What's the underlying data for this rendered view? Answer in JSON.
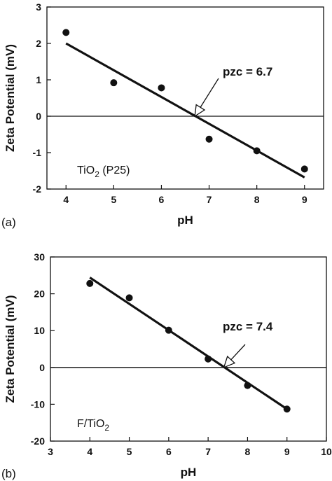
{
  "chart_data": [
    {
      "type": "scatter",
      "panel_label": "(a)",
      "xlabel": "pH",
      "ylabel": "Zeta Potential (mV)",
      "xlim": [
        3.6,
        9.4
      ],
      "ylim": [
        -2,
        3
      ],
      "xticks": [
        "4",
        "5",
        "6",
        "7",
        "8",
        "9"
      ],
      "yticks": [
        "3",
        "2",
        "1",
        "0",
        "-1",
        "-2"
      ],
      "x": [
        4,
        5,
        6,
        7,
        8,
        9
      ],
      "y": [
        2.3,
        0.92,
        0.78,
        -0.63,
        -0.95,
        -1.45
      ],
      "fit_line": {
        "x": [
          4,
          9
        ],
        "y": [
          2.0,
          -1.68
        ]
      },
      "zero_line": true,
      "annotation": {
        "text": "pzc = 6.7",
        "x": 6.7
      },
      "sample_label": {
        "prefix": "TiO",
        "sub": "2",
        "suffix": " (P25)"
      }
    },
    {
      "type": "scatter",
      "panel_label": "(b)",
      "xlabel": "pH",
      "ylabel": "Zeta Potential (mV)",
      "xlim": [
        3,
        10
      ],
      "ylim": [
        -20,
        30
      ],
      "xticks": [
        "3",
        "4",
        "5",
        "6",
        "7",
        "8",
        "9",
        "10"
      ],
      "yticks": [
        "30",
        "20",
        "10",
        "0",
        "-10",
        "-20"
      ],
      "x": [
        4,
        5,
        6,
        7,
        8,
        9
      ],
      "y": [
        22.8,
        18.9,
        10.1,
        2.3,
        -4.9,
        -11.3
      ],
      "fit_line": {
        "x": [
          4,
          9
        ],
        "y": [
          24.4,
          -11.3
        ]
      },
      "zero_line": true,
      "annotation": {
        "text": "pzc = 7.4",
        "x": 7.4
      },
      "sample_label": {
        "prefix": "F/TiO",
        "sub": "2",
        "suffix": ""
      }
    }
  ]
}
